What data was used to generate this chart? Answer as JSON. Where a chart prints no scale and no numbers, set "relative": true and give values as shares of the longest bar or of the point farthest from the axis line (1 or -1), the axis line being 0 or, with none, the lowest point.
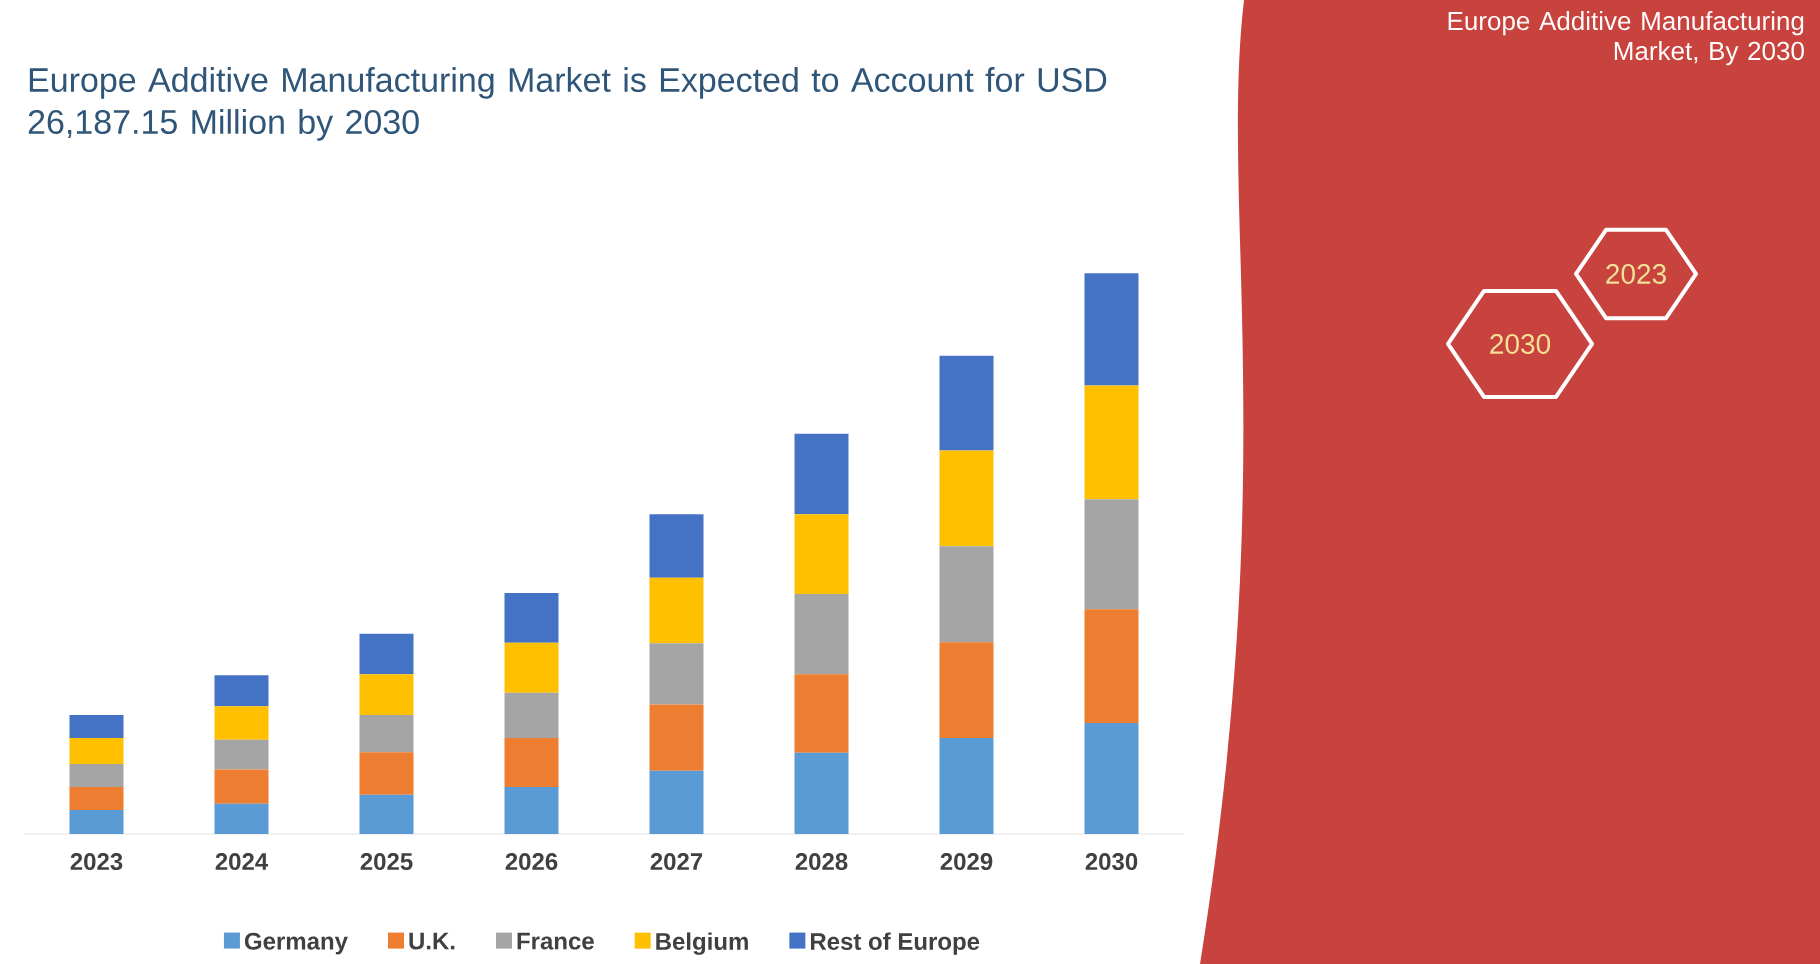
{
  "chart_data": {
    "type": "bar",
    "stacked": true,
    "relative": true,
    "legend": "bottom",
    "title": "Europe Additive Manufacturing Market is Expected to Account for USD 26,187.15 Million by 2030",
    "annotations": [
      "Europe Additive Manufacturing Market, By 2030",
      "2023",
      "2030"
    ],
    "categories": [
      "2023",
      "2024",
      "2025",
      "2026",
      "2027",
      "2028",
      "2029",
      "2030"
    ],
    "series": [
      {
        "name": "Germany",
        "color": "#5b9bd5",
        "values": [
          0.043,
          0.054,
          0.07,
          0.084,
          0.113,
          0.145,
          0.171,
          0.198
        ]
      },
      {
        "name": "U.K.",
        "color": "#ed7d31",
        "values": [
          0.041,
          0.061,
          0.076,
          0.087,
          0.118,
          0.14,
          0.171,
          0.203
        ]
      },
      {
        "name": "France",
        "color": "#a5a5a5",
        "values": [
          0.041,
          0.053,
          0.066,
          0.081,
          0.109,
          0.143,
          0.171,
          0.196
        ]
      },
      {
        "name": "Belgium",
        "color": "#ffc000",
        "values": [
          0.046,
          0.06,
          0.073,
          0.089,
          0.117,
          0.142,
          0.171,
          0.203
        ]
      },
      {
        "name": "Rest of Europe",
        "color": "#4472c4",
        "values": [
          0.041,
          0.055,
          0.072,
          0.089,
          0.113,
          0.144,
          0.169,
          0.2
        ]
      }
    ]
  }
}
